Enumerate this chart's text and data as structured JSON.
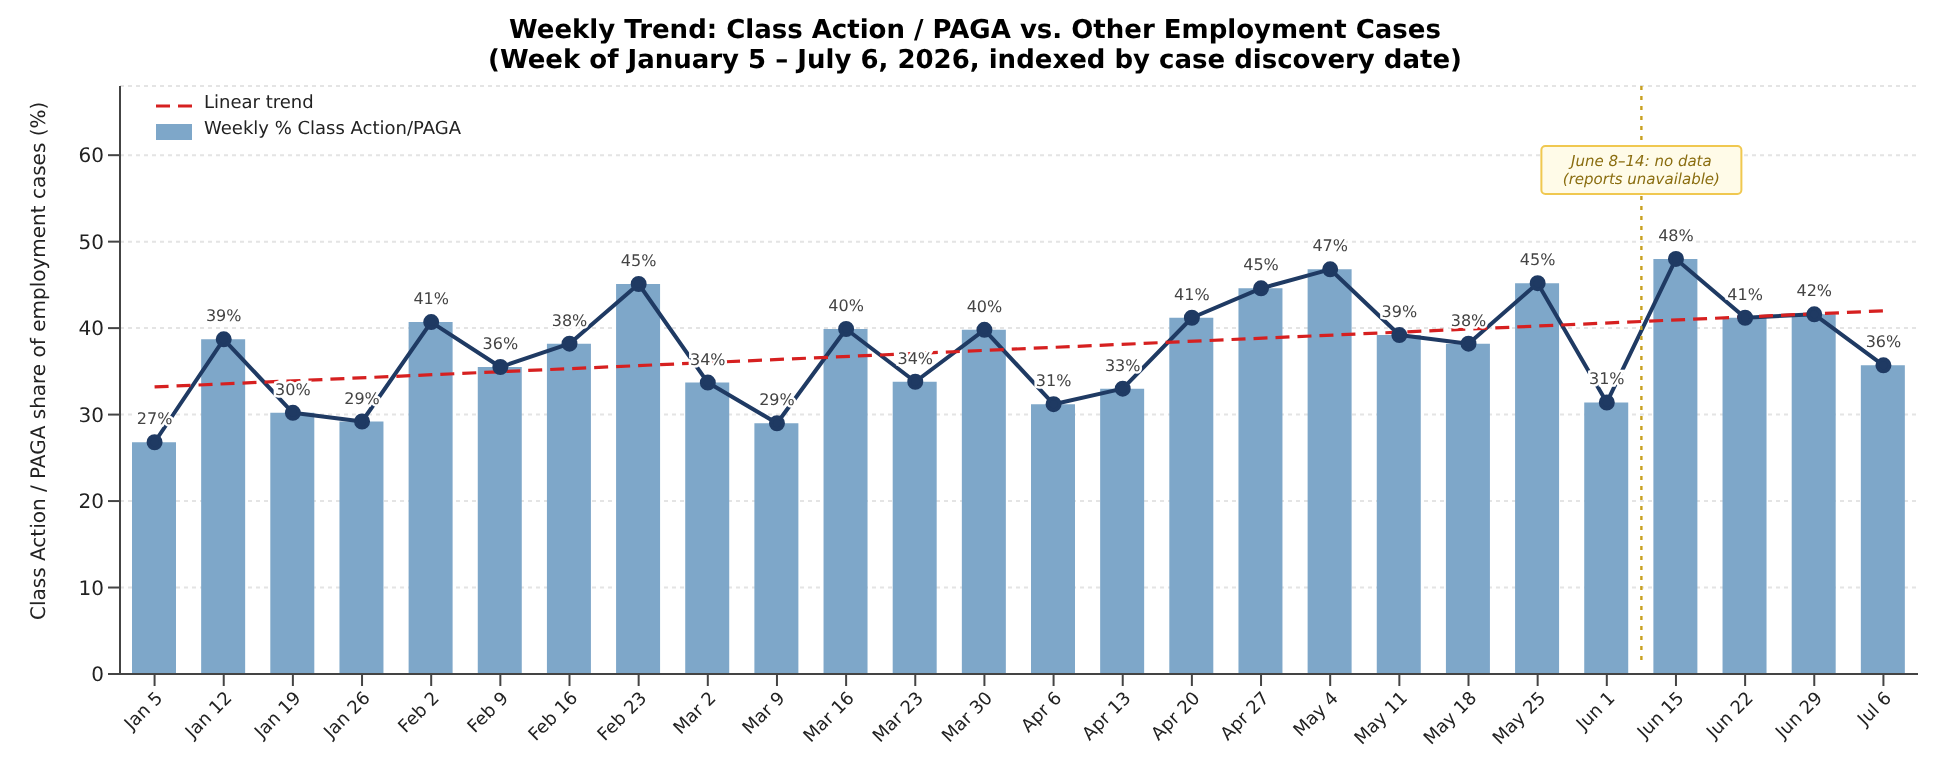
{
  "chart_data": {
    "type": "bar",
    "title": "Weekly Trend: Class Action / PAGA vs. Other Employment Cases",
    "subtitle": "(Week of January 5 – July 6, 2026, indexed by case discovery date)",
    "ylabel": "Class Action / PAGA share of employment cases (%)",
    "categories": [
      "Jan 5",
      "Jan 12",
      "Jan 19",
      "Jan 26",
      "Feb 2",
      "Feb 9",
      "Feb 16",
      "Feb 23",
      "Mar 2",
      "Mar 9",
      "Mar 16",
      "Mar 23",
      "Mar 30",
      "Apr 6",
      "Apr 13",
      "Apr 20",
      "Apr 27",
      "May 4",
      "May 11",
      "May 18",
      "May 25",
      "Jun 1",
      "Jun 15",
      "Jun 22",
      "Jun 29",
      "Jul 6"
    ],
    "series": [
      {
        "name": "Weekly % Class Action/PAGA",
        "color": "#7ea7c9",
        "values": [
          26.8,
          38.7,
          30.2,
          29.2,
          40.7,
          35.5,
          38.2,
          45.1,
          33.7,
          29.0,
          39.9,
          33.8,
          39.8,
          31.2,
          33.0,
          41.2,
          44.6,
          46.8,
          39.2,
          38.2,
          45.2,
          31.4,
          48.0,
          41.2,
          41.6,
          35.7
        ],
        "value_labels": [
          "27%",
          "39%",
          "30%",
          "29%",
          "41%",
          "36%",
          "38%",
          "45%",
          "34%",
          "29%",
          "40%",
          "34%",
          "40%",
          "31%",
          "33%",
          "41%",
          "45%",
          "47%",
          "39%",
          "38%",
          "45%",
          "31%",
          "48%",
          "41%",
          "42%",
          "36%"
        ]
      },
      {
        "type": "line",
        "color": "#1f3a63",
        "marker": "circle",
        "line_style": "solid",
        "values": [
          26.8,
          38.7,
          30.2,
          29.2,
          40.7,
          35.5,
          38.2,
          45.1,
          33.7,
          29.0,
          39.9,
          33.8,
          39.8,
          31.2,
          33.0,
          41.2,
          44.6,
          46.8,
          39.2,
          38.2,
          45.2,
          31.4,
          48.0,
          41.2,
          41.6,
          35.7
        ]
      },
      {
        "name": "Linear trend",
        "type": "line",
        "color": "#d62020",
        "marker": "none",
        "line_style": "dashed",
        "values": [
          33.2,
          null,
          null,
          null,
          null,
          null,
          null,
          null,
          null,
          null,
          null,
          null,
          null,
          null,
          null,
          null,
          null,
          null,
          null,
          null,
          null,
          null,
          null,
          null,
          null,
          42.0
        ]
      }
    ],
    "annotations": [
      "June 8–14: no data\n(reports unavailable)"
    ],
    "ylim": [
      0,
      68
    ],
    "yticks": [
      0,
      10,
      20,
      30,
      40,
      50,
      60
    ],
    "grid": "y",
    "legend": "top left"
  }
}
